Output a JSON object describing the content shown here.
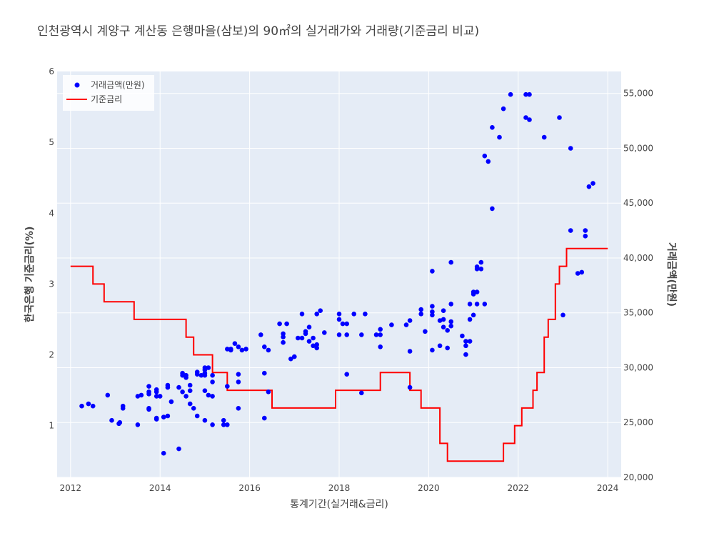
{
  "chart_data": {
    "type": "scatter+line",
    "title": "인천광역시 계양구 계산동 은행마을(삼보)의 90㎡의 실거래가와 거래량(기준금리 비교)",
    "xlabel": "통계기간(실거래&금리)",
    "ylabel_left": "한국은행 기준금리(%)",
    "ylabel_right": "거래금액(만원)",
    "xlim": [
      2011.7,
      2024.3
    ],
    "ylim_left": [
      0.27,
      6
    ],
    "ylim_right": [
      20000,
      57000
    ],
    "x_ticks": [
      "2012",
      "2014",
      "2016",
      "2018",
      "2020",
      "2022",
      "2024"
    ],
    "y_left_ticks": [
      "1",
      "2",
      "3",
      "4",
      "5",
      "6"
    ],
    "y_right_ticks": [
      "20,000",
      "25,000",
      "30,000",
      "35,000",
      "40,000",
      "45,000",
      "50,000",
      "55,000"
    ],
    "legend": {
      "position": "top-left"
    },
    "grid": true,
    "colors": {
      "scatter": "#0000ff",
      "line": "#ff0000",
      "plot_bg": "#e5ecf6"
    },
    "series": [
      {
        "name": "거래금액(만원)",
        "type": "scatter",
        "axis": "right",
        "points": [
          [
            2012.25,
            26500
          ],
          [
            2012.4,
            26700
          ],
          [
            2012.5,
            26500
          ],
          [
            2012.83,
            27500
          ],
          [
            2012.92,
            25200
          ],
          [
            2013.08,
            24900
          ],
          [
            2013.1,
            25000
          ],
          [
            2013.17,
            26300
          ],
          [
            2013.17,
            26500
          ],
          [
            2013.5,
            24800
          ],
          [
            2013.5,
            27400
          ],
          [
            2013.58,
            27500
          ],
          [
            2013.75,
            26200
          ],
          [
            2013.75,
            26300
          ],
          [
            2013.75,
            27600
          ],
          [
            2013.75,
            27800
          ],
          [
            2013.75,
            28300
          ],
          [
            2013.92,
            25300
          ],
          [
            2013.92,
            25400
          ],
          [
            2013.92,
            27400
          ],
          [
            2013.92,
            27800
          ],
          [
            2013.92,
            28000
          ],
          [
            2014.0,
            27400
          ],
          [
            2014.08,
            22200
          ],
          [
            2014.08,
            25500
          ],
          [
            2014.17,
            25600
          ],
          [
            2014.17,
            28200
          ],
          [
            2014.17,
            28400
          ],
          [
            2014.25,
            26900
          ],
          [
            2014.42,
            22600
          ],
          [
            2014.42,
            28200
          ],
          [
            2014.5,
            27800
          ],
          [
            2014.5,
            29300
          ],
          [
            2014.5,
            29500
          ],
          [
            2014.58,
            27400
          ],
          [
            2014.58,
            29100
          ],
          [
            2014.58,
            29300
          ],
          [
            2014.67,
            26700
          ],
          [
            2014.67,
            27900
          ],
          [
            2014.67,
            28400
          ],
          [
            2014.75,
            26300
          ],
          [
            2014.83,
            25600
          ],
          [
            2014.83,
            29400
          ],
          [
            2014.83,
            29600
          ],
          [
            2014.92,
            29300
          ],
          [
            2015.0,
            25200
          ],
          [
            2015.0,
            27900
          ],
          [
            2015.0,
            29300
          ],
          [
            2015.0,
            29500
          ],
          [
            2015.0,
            29800
          ],
          [
            2015.0,
            30000
          ],
          [
            2015.08,
            27500
          ],
          [
            2015.08,
            30000
          ],
          [
            2015.17,
            24800
          ],
          [
            2015.17,
            27400
          ],
          [
            2015.17,
            29300
          ],
          [
            2015.17,
            28700
          ],
          [
            2015.5,
            24800
          ],
          [
            2015.42,
            24800
          ],
          [
            2015.42,
            25200
          ],
          [
            2015.5,
            28300
          ],
          [
            2015.5,
            31700
          ],
          [
            2015.58,
            31700
          ],
          [
            2015.58,
            31600
          ],
          [
            2015.67,
            32200
          ],
          [
            2015.75,
            26300
          ],
          [
            2015.75,
            29400
          ],
          [
            2015.75,
            28700
          ],
          [
            2015.75,
            31900
          ],
          [
            2015.83,
            31600
          ],
          [
            2015.92,
            31700
          ],
          [
            2016.25,
            33000
          ],
          [
            2016.33,
            25400
          ],
          [
            2016.33,
            29500
          ],
          [
            2016.33,
            31900
          ],
          [
            2016.42,
            27800
          ],
          [
            2016.42,
            31600
          ],
          [
            2016.67,
            34000
          ],
          [
            2016.75,
            32300
          ],
          [
            2016.75,
            32800
          ],
          [
            2016.75,
            33100
          ],
          [
            2016.83,
            34000
          ],
          [
            2016.92,
            30800
          ],
          [
            2017.0,
            31000
          ],
          [
            2017.08,
            32700
          ],
          [
            2017.17,
            32700
          ],
          [
            2017.17,
            34900
          ],
          [
            2017.25,
            33100
          ],
          [
            2017.25,
            33300
          ],
          [
            2017.33,
            33700
          ],
          [
            2017.33,
            32400
          ],
          [
            2017.42,
            32700
          ],
          [
            2017.42,
            32000
          ],
          [
            2017.5,
            31800
          ],
          [
            2017.5,
            32100
          ],
          [
            2017.5,
            34900
          ],
          [
            2017.58,
            35200
          ],
          [
            2017.67,
            33200
          ],
          [
            2018.0,
            33000
          ],
          [
            2018.0,
            34400
          ],
          [
            2018.0,
            34900
          ],
          [
            2018.08,
            34000
          ],
          [
            2018.17,
            34000
          ],
          [
            2018.17,
            33000
          ],
          [
            2018.17,
            29400
          ],
          [
            2018.33,
            34900
          ],
          [
            2018.5,
            27700
          ],
          [
            2018.5,
            33000
          ],
          [
            2018.58,
            34900
          ],
          [
            2018.83,
            33000
          ],
          [
            2018.92,
            31900
          ],
          [
            2018.92,
            33000
          ],
          [
            2018.92,
            33500
          ],
          [
            2019.17,
            33900
          ],
          [
            2019.5,
            33900
          ],
          [
            2019.58,
            28200
          ],
          [
            2019.58,
            31500
          ],
          [
            2019.58,
            34300
          ],
          [
            2019.83,
            34900
          ],
          [
            2019.83,
            35300
          ],
          [
            2019.92,
            33300
          ],
          [
            2020.08,
            31600
          ],
          [
            2020.08,
            34800
          ],
          [
            2020.08,
            35100
          ],
          [
            2020.08,
            35600
          ],
          [
            2020.08,
            38800
          ],
          [
            2020.25,
            32000
          ],
          [
            2020.25,
            34300
          ],
          [
            2020.33,
            33700
          ],
          [
            2020.33,
            34400
          ],
          [
            2020.33,
            35200
          ],
          [
            2020.42,
            31800
          ],
          [
            2020.42,
            33400
          ],
          [
            2020.5,
            33800
          ],
          [
            2020.5,
            34200
          ],
          [
            2020.5,
            35800
          ],
          [
            2020.5,
            39600
          ],
          [
            2020.75,
            32900
          ],
          [
            2020.83,
            31200
          ],
          [
            2020.83,
            32000
          ],
          [
            2020.83,
            32400
          ],
          [
            2020.92,
            32400
          ],
          [
            2020.92,
            34400
          ],
          [
            2020.92,
            35800
          ],
          [
            2021.0,
            34800
          ],
          [
            2021.0,
            36700
          ],
          [
            2021.0,
            36900
          ],
          [
            2021.08,
            35800
          ],
          [
            2021.08,
            36900
          ],
          [
            2021.08,
            39000
          ],
          [
            2021.08,
            39200
          ],
          [
            2021.17,
            39000
          ],
          [
            2021.17,
            39600
          ],
          [
            2021.25,
            35800
          ],
          [
            2021.25,
            49300
          ],
          [
            2021.33,
            48800
          ],
          [
            2021.42,
            44500
          ],
          [
            2021.42,
            51900
          ],
          [
            2021.58,
            51000
          ],
          [
            2021.67,
            53600
          ],
          [
            2021.83,
            54900
          ],
          [
            2022.17,
            54900
          ],
          [
            2022.17,
            52800
          ],
          [
            2022.25,
            54900
          ],
          [
            2022.25,
            52600
          ],
          [
            2022.58,
            51000
          ],
          [
            2022.92,
            52800
          ],
          [
            2023.0,
            34800
          ],
          [
            2023.17,
            42500
          ],
          [
            2023.17,
            50000
          ],
          [
            2023.33,
            38600
          ],
          [
            2023.42,
            38700
          ],
          [
            2023.5,
            42000
          ],
          [
            2023.5,
            42500
          ],
          [
            2023.58,
            46500
          ],
          [
            2023.67,
            46800
          ]
        ]
      },
      {
        "name": "기준금리",
        "type": "line",
        "axis": "left",
        "shape": "hv",
        "points": [
          [
            2012.0,
            3.25
          ],
          [
            2012.5,
            3.0
          ],
          [
            2012.75,
            2.75
          ],
          [
            2013.42,
            2.5
          ],
          [
            2014.58,
            2.25
          ],
          [
            2014.75,
            2.0
          ],
          [
            2015.17,
            1.75
          ],
          [
            2015.5,
            1.5
          ],
          [
            2016.5,
            1.25
          ],
          [
            2017.92,
            1.5
          ],
          [
            2018.92,
            1.75
          ],
          [
            2019.58,
            1.5
          ],
          [
            2019.83,
            1.25
          ],
          [
            2020.25,
            0.75
          ],
          [
            2020.42,
            0.5
          ],
          [
            2021.67,
            0.75
          ],
          [
            2021.92,
            1.0
          ],
          [
            2022.08,
            1.25
          ],
          [
            2022.33,
            1.5
          ],
          [
            2022.42,
            1.75
          ],
          [
            2022.58,
            2.25
          ],
          [
            2022.67,
            2.5
          ],
          [
            2022.83,
            3.0
          ],
          [
            2022.92,
            3.25
          ],
          [
            2023.08,
            3.5
          ],
          [
            2024.0,
            3.5
          ]
        ]
      }
    ]
  }
}
